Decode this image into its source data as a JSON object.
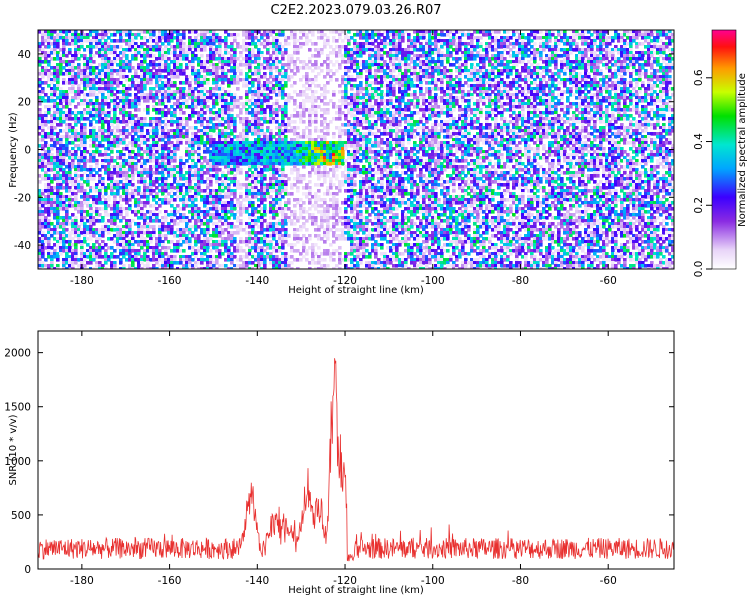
{
  "title": "C2E2.2023.079.03.26.R07",
  "chart_data": [
    {
      "type": "heatmap",
      "xlabel": "Height of straight line (km)",
      "ylabel": "Frequency (Hz)",
      "xlim": [
        -190,
        -45
      ],
      "ylim": [
        -50,
        50
      ],
      "x_ticks": [
        "-180",
        "-160",
        "-140",
        "-120",
        "-100",
        "-80",
        "-60"
      ],
      "y_ticks": [
        "-40",
        "-20",
        "0",
        "20",
        "40"
      ],
      "colorbar": {
        "label": "Normalized spectral amplitude",
        "range": [
          0,
          0.75
        ],
        "ticks": [
          "0.0",
          "0.2",
          "0.4",
          "0.6"
        ]
      },
      "gap_regions": [
        [
          -145,
          -143
        ],
        [
          -133,
          -120
        ]
      ],
      "signal_band": {
        "x_range": [
          -150,
          -120
        ],
        "y_range": [
          -7,
          3
        ],
        "peak_x": -123,
        "peak_value": 0.7
      },
      "noise_level": 0.12
    },
    {
      "type": "line",
      "xlabel": "Height of straight line (km)",
      "ylabel": "SNR (10 * v/v)",
      "xlim": [
        -190,
        -45
      ],
      "ylim": [
        0,
        2200
      ],
      "x_ticks": [
        "-180",
        "-160",
        "-140",
        "-120",
        "-100",
        "-80",
        "-60"
      ],
      "y_ticks": [
        "0",
        "500",
        "1000",
        "1500",
        "2000"
      ],
      "series": [
        {
          "color": "#e8302f",
          "baseline": 180,
          "noise_amplitude": 150,
          "peaks": [
            {
              "x": -141.5,
              "value": 830
            },
            {
              "x": -136,
              "value": 560
            },
            {
              "x": -133,
              "value": 500
            },
            {
              "x": -128.5,
              "value": 1000
            },
            {
              "x": -126,
              "value": 720
            },
            {
              "x": -122.5,
              "value": 2180
            },
            {
              "x": -121,
              "value": 1250
            }
          ]
        }
      ]
    }
  ]
}
